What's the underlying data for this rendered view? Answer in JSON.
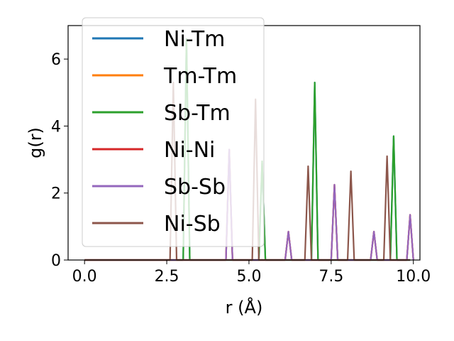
{
  "chart_data": {
    "type": "line",
    "xlabel": "r (Å)",
    "ylabel": "g(r)",
    "xlim": [
      -0.5,
      10.2
    ],
    "ylim": [
      0,
      7
    ],
    "xticks": [
      0.0,
      2.5,
      5.0,
      7.5,
      10.0
    ],
    "xtick_labels": [
      "0.0",
      "2.5",
      "5.0",
      "7.5",
      "10.0"
    ],
    "yticks": [
      0,
      2,
      4,
      6
    ],
    "ytick_labels": [
      "0",
      "2",
      "4",
      "6"
    ],
    "grid": false,
    "legend_position": "upper-left",
    "peak_half_width": 0.1,
    "series": [
      {
        "name": "Ni-Tm",
        "color": "#1f77b4",
        "peaks": [
          [
            3.1,
            6.6
          ],
          [
            5.4,
            2.9
          ],
          [
            7.0,
            5.3
          ],
          [
            9.4,
            3.7
          ]
        ]
      },
      {
        "name": "Tm-Tm",
        "color": "#ff7f0e",
        "peaks": [
          [
            4.4,
            3.3
          ],
          [
            6.2,
            0.85
          ],
          [
            7.6,
            2.25
          ],
          [
            8.8,
            0.85
          ],
          [
            9.9,
            1.35
          ]
        ]
      },
      {
        "name": "Sb-Tm",
        "color": "#2ca02c",
        "peaks": [
          [
            3.1,
            6.6
          ],
          [
            5.4,
            2.95
          ],
          [
            7.0,
            5.3
          ],
          [
            9.4,
            3.7
          ]
        ]
      },
      {
        "name": "Ni-Ni",
        "color": "#d62728",
        "peaks": [
          [
            4.4,
            3.3
          ],
          [
            6.2,
            0.85
          ],
          [
            7.6,
            2.25
          ],
          [
            8.8,
            0.85
          ],
          [
            9.9,
            1.35
          ]
        ]
      },
      {
        "name": "Sb-Sb",
        "color": "#9467bd",
        "peaks": [
          [
            4.4,
            3.3
          ],
          [
            6.2,
            0.85
          ],
          [
            7.6,
            2.25
          ],
          [
            8.8,
            0.85
          ],
          [
            9.9,
            1.35
          ]
        ]
      },
      {
        "name": "Ni-Sb",
        "color": "#8c564b",
        "peaks": [
          [
            2.7,
            5.3
          ],
          [
            5.2,
            4.8
          ],
          [
            6.8,
            2.8
          ],
          [
            8.1,
            2.65
          ],
          [
            9.2,
            3.1
          ]
        ]
      }
    ]
  }
}
